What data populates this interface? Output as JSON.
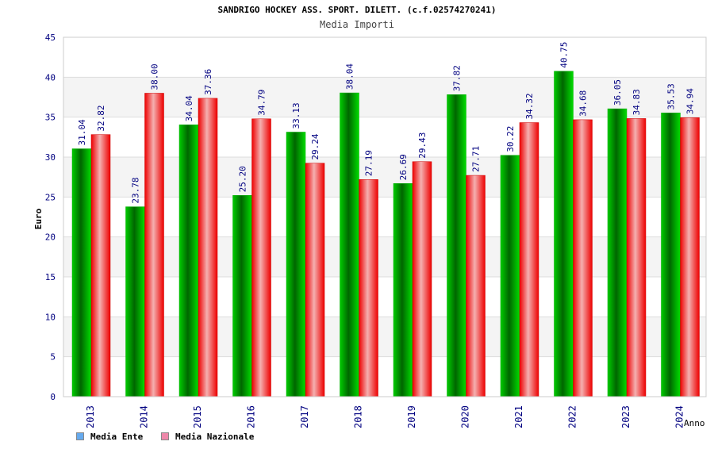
{
  "chart_data": {
    "type": "bar",
    "title": "SANDRIGO HOCKEY ASS. SPORT. DILETT. (c.f.02574270241)",
    "subtitle": "Media Importi",
    "xlabel": "Anno",
    "ylabel": "Euro",
    "ylim": [
      0,
      45
    ],
    "yticks": [
      0,
      5,
      10,
      15,
      20,
      25,
      30,
      35,
      40,
      45
    ],
    "categories": [
      "2013",
      "2014",
      "2015",
      "2016",
      "2017",
      "2018",
      "2019",
      "2020",
      "2021",
      "2022",
      "2023",
      "2024"
    ],
    "series": [
      {
        "name": "Media Ente",
        "color": "#00aa00",
        "legend_color": "#66aaee",
        "values": [
          31.04,
          23.78,
          34.04,
          25.2,
          33.13,
          38.04,
          26.69,
          37.82,
          30.22,
          40.75,
          36.05,
          35.53
        ],
        "labels": [
          "31.04",
          "23.78",
          "34.04",
          "25.20",
          "33.13",
          "38.04",
          "26.69",
          "37.82",
          "30.22",
          "40.75",
          "36.05",
          "35.53"
        ]
      },
      {
        "name": "Media Nazionale",
        "color": "#ee1111",
        "legend_color": "#ee88aa",
        "values": [
          32.82,
          38.0,
          37.36,
          34.79,
          29.24,
          27.19,
          29.43,
          27.71,
          34.32,
          34.68,
          34.83,
          34.94
        ],
        "labels": [
          "32.82",
          "38.00",
          "37.36",
          "34.79",
          "29.24",
          "27.19",
          "29.43",
          "27.71",
          "34.32",
          "34.68",
          "34.83",
          "34.94"
        ]
      }
    ],
    "grid": true,
    "legend_position": "bottom-left"
  }
}
